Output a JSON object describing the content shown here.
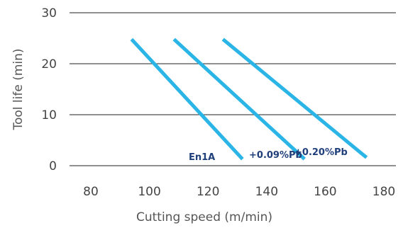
{
  "chart_data": {
    "type": "line",
    "title": "",
    "xlabel": "Cutting speed (m/min)",
    "ylabel": "Tool life (min)",
    "xlim": [
      80,
      180
    ],
    "ylim": [
      0,
      30
    ],
    "x_ticks": [
      "80",
      "100",
      "120",
      "140",
      "160",
      "180"
    ],
    "y_ticks": [
      "0",
      "10",
      "20",
      "30"
    ],
    "grid": "horizontal",
    "line_color": "#2bb5e6",
    "label_color": "#1f3f7a",
    "series": [
      {
        "name": "En1A",
        "x": [
          99,
          133
        ],
        "y": [
          24.8,
          1.3
        ]
      },
      {
        "name": "+0.09%Pb",
        "x": [
          112,
          152
        ],
        "y": [
          24.8,
          1.3
        ]
      },
      {
        "name": "+0.20%Pb",
        "x": [
          127,
          171
        ],
        "y": [
          24.8,
          1.6
        ]
      }
    ]
  }
}
